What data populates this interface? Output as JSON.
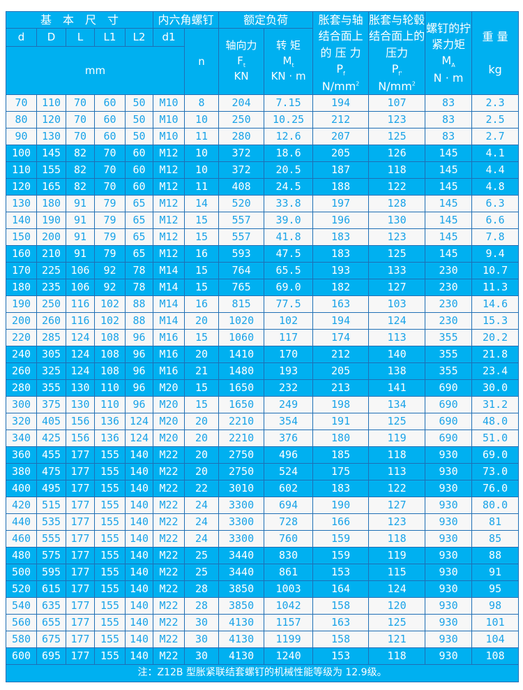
{
  "header": {
    "basic_size": "基　本　尺　寸",
    "screw": "内六角螺钉",
    "rated_load": "额定负荷",
    "pressure_shaft": "胀套与轴结合面上的 压 力",
    "pressure_hub": "胀套与轮毂结合面上的压力",
    "tightening": "螺钉的拧紧力矩",
    "weight": "重 量",
    "cols": {
      "d": "d",
      "D": "D",
      "L": "L",
      "L1": "L1",
      "L2": "L2",
      "d1": "d1",
      "n": "n"
    },
    "mm": "mm",
    "axial": "轴向力",
    "axial_sym": "F",
    "axial_sub": "t",
    "axial_unit": "KN",
    "torque": "转 矩",
    "torque_sym": "M",
    "torque_sub": "t",
    "torque_unit": "KN · m",
    "pf_sym": "P",
    "pf_sub": "f",
    "pf_unit": "N/mm",
    "pf_sup": "2",
    "pf2_sym": "P",
    "pf2_sub": "f'",
    "pf2_unit": "N/mm",
    "pf2_sup": "2",
    "ma_sym": "M",
    "ma_sub": "A",
    "ma_unit": "N · m",
    "kg": "kg"
  },
  "rows": [
    [
      "70",
      "110",
      "70",
      "60",
      "50",
      "M10",
      "8",
      "204",
      "7.15",
      "194",
      "107",
      "83",
      "2.3"
    ],
    [
      "80",
      "120",
      "70",
      "60",
      "50",
      "M10",
      "10",
      "250",
      "10.25",
      "212",
      "123",
      "83",
      "2.5"
    ],
    [
      "90",
      "130",
      "70",
      "60",
      "50",
      "M10",
      "11",
      "280",
      "12.6",
      "207",
      "125",
      "83",
      "2.7"
    ],
    [
      "100",
      "145",
      "82",
      "70",
      "60",
      "M12",
      "10",
      "372",
      "18.6",
      "205",
      "126",
      "145",
      "4.1"
    ],
    [
      "110",
      "155",
      "82",
      "70",
      "60",
      "M12",
      "10",
      "372",
      "20.5",
      "187",
      "118",
      "145",
      "4.4"
    ],
    [
      "120",
      "165",
      "82",
      "70",
      "60",
      "M12",
      "11",
      "408",
      "24.5",
      "188",
      "122",
      "145",
      "4.8"
    ],
    [
      "130",
      "180",
      "91",
      "79",
      "65",
      "M12",
      "14",
      "520",
      "33.8",
      "197",
      "128",
      "145",
      "6.3"
    ],
    [
      "140",
      "190",
      "91",
      "79",
      "65",
      "M12",
      "15",
      "557",
      "39.0",
      "196",
      "130",
      "145",
      "6.6"
    ],
    [
      "150",
      "200",
      "91",
      "79",
      "65",
      "M12",
      "15",
      "557",
      "41.8",
      "183",
      "123",
      "145",
      "7.8"
    ],
    [
      "160",
      "210",
      "91",
      "79",
      "65",
      "M12",
      "16",
      "593",
      "47.5",
      "183",
      "125",
      "145",
      "9.4"
    ],
    [
      "170",
      "225",
      "106",
      "92",
      "78",
      "M14",
      "15",
      "764",
      "65.5",
      "193",
      "133",
      "230",
      "10.7"
    ],
    [
      "180",
      "235",
      "106",
      "92",
      "78",
      "M14",
      "15",
      "765",
      "69.0",
      "182",
      "127",
      "230",
      "11.3"
    ],
    [
      "190",
      "250",
      "116",
      "102",
      "88",
      "M14",
      "16",
      "815",
      "77.5",
      "163",
      "103",
      "230",
      "14.6"
    ],
    [
      "200",
      "260",
      "116",
      "102",
      "88",
      "M14",
      "20",
      "1020",
      "102",
      "194",
      "124",
      "230",
      "15.3"
    ],
    [
      "220",
      "285",
      "124",
      "108",
      "96",
      "M16",
      "15",
      "1060",
      "117",
      "174",
      "113",
      "355",
      "20.2"
    ],
    [
      "240",
      "305",
      "124",
      "108",
      "96",
      "M16",
      "20",
      "1410",
      "170",
      "212",
      "140",
      "355",
      "21.8"
    ],
    [
      "260",
      "325",
      "124",
      "108",
      "96",
      "M16",
      "21",
      "1480",
      "193",
      "205",
      "138",
      "355",
      "23.4"
    ],
    [
      "280",
      "355",
      "130",
      "110",
      "96",
      "M20",
      "15",
      "1650",
      "232",
      "213",
      "141",
      "690",
      "30.0"
    ],
    [
      "300",
      "375",
      "130",
      "110",
      "96",
      "M20",
      "15",
      "1650",
      "249",
      "198",
      "134",
      "690",
      "31.2"
    ],
    [
      "320",
      "405",
      "156",
      "136",
      "124",
      "M20",
      "20",
      "2210",
      "354",
      "191",
      "125",
      "690",
      "48.0"
    ],
    [
      "340",
      "425",
      "156",
      "136",
      "124",
      "M20",
      "20",
      "2210",
      "376",
      "180",
      "119",
      "690",
      "51.0"
    ],
    [
      "360",
      "455",
      "177",
      "155",
      "140",
      "M22",
      "20",
      "2750",
      "496",
      "185",
      "118",
      "930",
      "69.0"
    ],
    [
      "380",
      "475",
      "177",
      "155",
      "140",
      "M22",
      "20",
      "2750",
      "524",
      "175",
      "113",
      "930",
      "73.0"
    ],
    [
      "400",
      "495",
      "177",
      "155",
      "140",
      "M22",
      "22",
      "3010",
      "602",
      "183",
      "122",
      "930",
      "76.0"
    ],
    [
      "420",
      "515",
      "177",
      "155",
      "140",
      "M22",
      "24",
      "3300",
      "694",
      "190",
      "127",
      "930",
      "80.0"
    ],
    [
      "440",
      "535",
      "177",
      "155",
      "140",
      "M22",
      "24",
      "3300",
      "728",
      "166",
      "123",
      "930",
      "81"
    ],
    [
      "460",
      "555",
      "177",
      "155",
      "140",
      "M22",
      "24",
      "3300",
      "760",
      "159",
      "118",
      "930",
      "85"
    ],
    [
      "480",
      "575",
      "177",
      "155",
      "140",
      "M22",
      "25",
      "3440",
      "830",
      "159",
      "119",
      "930",
      "88"
    ],
    [
      "500",
      "595",
      "177",
      "155",
      "140",
      "M22",
      "25",
      "3440",
      "861",
      "153",
      "115",
      "930",
      "91"
    ],
    [
      "520",
      "615",
      "177",
      "155",
      "140",
      "M22",
      "28",
      "3850",
      "1003",
      "164",
      "124",
      "930",
      "95"
    ],
    [
      "540",
      "635",
      "177",
      "155",
      "140",
      "M22",
      "28",
      "3850",
      "1042",
      "158",
      "120",
      "930",
      "98"
    ],
    [
      "560",
      "655",
      "177",
      "155",
      "140",
      "M22",
      "30",
      "4130",
      "1157",
      "163",
      "125",
      "930",
      "101"
    ],
    [
      "580",
      "675",
      "177",
      "155",
      "140",
      "M22",
      "30",
      "4130",
      "1199",
      "158",
      "121",
      "930",
      "104"
    ],
    [
      "600",
      "695",
      "177",
      "155",
      "140",
      "M22",
      "30",
      "4130",
      "1240",
      "153",
      "118",
      "930",
      "108"
    ]
  ],
  "footer": "注：Z12B 型胀紧联结套螺钉的机械性能等级为 12.9级。",
  "colors": {
    "header_bg": "#00b0f0",
    "border": "#1f6fb5",
    "row_light": "#f7f7f7",
    "text_light": "#1aa3e8"
  }
}
